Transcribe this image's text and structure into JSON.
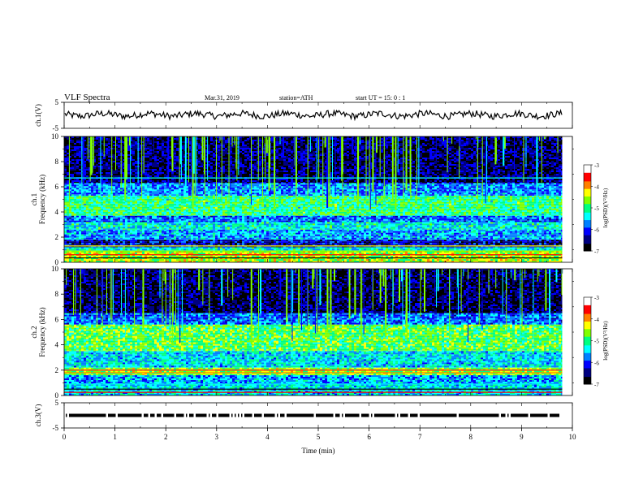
{
  "header": {
    "title": "VLF  Spectra",
    "date": "Mar.31, 2019",
    "station": "station=ATH",
    "start": "start  UT  =    15: 0  : 1"
  },
  "chart_data": {
    "type": "heatmap",
    "x_axis": {
      "label": "Time  (min)",
      "range": [
        0,
        10
      ],
      "ticks": [
        "0",
        "1",
        "2",
        "3",
        "4",
        "5",
        "6",
        "7",
        "8",
        "9",
        "10"
      ]
    },
    "panels": [
      {
        "id": "ch1_waveform",
        "ylabel": "ch.1(V)",
        "yrange": [
          -5,
          5
        ],
        "yticks": [
          "5",
          "-5"
        ],
        "kind": "waveform",
        "mean_level": 0.2,
        "x_end": 9.8
      },
      {
        "id": "ch1_spectrogram",
        "ylabel": "ch.1\nFrequency  (kHz)",
        "ylabel_lines": [
          "ch.1",
          "Frequency  (kHz)"
        ],
        "yrange": [
          0,
          10
        ],
        "yticks": [
          "0",
          "2",
          "4",
          "6",
          "8",
          "10"
        ],
        "kind": "spectrogram",
        "x_end": 9.8,
        "bands_khz": [
          {
            "from": 0.0,
            "to": 0.9,
            "logpsd": -4.5
          },
          {
            "from": 0.9,
            "to": 1.2,
            "logpsd": -5.3
          },
          {
            "from": 1.2,
            "to": 1.8,
            "logpsd": -6.3
          },
          {
            "from": 1.8,
            "to": 2.6,
            "logpsd": -5.6
          },
          {
            "from": 2.6,
            "to": 3.2,
            "logpsd": -5.3
          },
          {
            "from": 3.2,
            "to": 3.7,
            "logpsd": -5.8
          },
          {
            "from": 3.7,
            "to": 5.3,
            "logpsd": -5.0
          },
          {
            "from": 5.3,
            "to": 6.3,
            "logpsd": -5.7
          },
          {
            "from": 6.3,
            "to": 10.0,
            "logpsd": -6.5
          }
        ]
      },
      {
        "id": "ch2_spectrogram",
        "ylabel": "ch.2\nFrequency  (kHz)",
        "ylabel_lines": [
          "ch.2",
          "Frequency  (kHz)"
        ],
        "yrange": [
          0,
          10
        ],
        "yticks": [
          "0",
          "2",
          "4",
          "6",
          "8",
          "10"
        ],
        "kind": "spectrogram",
        "x_end": 9.8,
        "bands_khz": [
          {
            "from": 0.0,
            "to": 0.9,
            "logpsd": -5.4
          },
          {
            "from": 0.9,
            "to": 1.6,
            "logpsd": -5.6
          },
          {
            "from": 1.6,
            "to": 2.2,
            "logpsd": -4.6
          },
          {
            "from": 2.2,
            "to": 3.5,
            "logpsd": -5.4
          },
          {
            "from": 3.5,
            "to": 5.6,
            "logpsd": -4.8
          },
          {
            "from": 5.6,
            "to": 6.5,
            "logpsd": -5.8
          },
          {
            "from": 6.5,
            "to": 10.0,
            "logpsd": -6.6
          }
        ]
      },
      {
        "id": "ch3_signal",
        "ylabel": "ch.3(V)",
        "yrange": [
          -5,
          5
        ],
        "yticks": [
          "5",
          "-5"
        ],
        "kind": "digital",
        "level": 0.0,
        "x_end": 9.7
      }
    ],
    "colorbar": {
      "label": "log(PSD)(V²/Hz)",
      "range": [
        -7,
        -3
      ],
      "ticks": [
        "-3",
        "-4",
        "-5",
        "-6",
        "-7"
      ],
      "colors": [
        "#000000",
        "#000080",
        "#0000ff",
        "#0080ff",
        "#00ffff",
        "#00ff80",
        "#80ff00",
        "#ffff00",
        "#ff8000",
        "#ff0000",
        "#ffffff"
      ]
    }
  }
}
